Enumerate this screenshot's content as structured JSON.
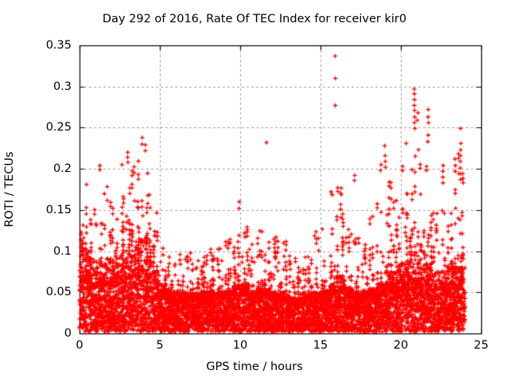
{
  "chart_data": {
    "type": "scatter",
    "title": "Day 292 of 2016, Rate Of TEC Index for receiver kir0",
    "xlabel": "GPS time / hours",
    "ylabel": "ROTI / TECUs",
    "xlim": [
      0,
      25
    ],
    "ylim": [
      0,
      0.35
    ],
    "xticks": [
      0,
      5,
      10,
      15,
      20,
      25
    ],
    "xtick_labels": [
      "0",
      "5",
      "10",
      "15",
      "20",
      "25"
    ],
    "yticks": [
      0,
      0.05,
      0.1,
      0.15,
      0.2,
      0.25,
      0.3,
      0.35
    ],
    "ytick_labels": [
      "0",
      "0.05",
      "0.1",
      "0.15",
      "0.2",
      "0.25",
      "0.3",
      "0.35"
    ],
    "grid": true,
    "legend": "none",
    "marker": "plus",
    "marker_color": "#ff0000",
    "grid_color": "#9e9e9e",
    "border_color": "#000000",
    "text_color": "#000000",
    "background_color": "#ffffff",
    "x_data_range": [
      0,
      24
    ],
    "point_cloud_model": {
      "description": "Dense scatter of ROTI values vs GPS time; per half-hour bin: [dense_top TECU (top of dense mass), finger_max TECU (top of sparse spike fingers)]",
      "seed": 292,
      "bin_hours": 0.5,
      "x_start": 0,
      "points_per_bin": 170,
      "bins": [
        [
          0.1,
          0.15
        ],
        [
          0.09,
          0.16
        ],
        [
          0.085,
          0.15
        ],
        [
          0.09,
          0.18
        ],
        [
          0.09,
          0.155
        ],
        [
          0.1,
          0.185
        ],
        [
          0.11,
          0.2
        ],
        [
          0.115,
          0.215
        ],
        [
          0.11,
          0.205
        ],
        [
          0.075,
          0.15
        ],
        [
          0.055,
          0.11
        ],
        [
          0.05,
          0.095
        ],
        [
          0.05,
          0.1
        ],
        [
          0.05,
          0.095
        ],
        [
          0.048,
          0.09
        ],
        [
          0.05,
          0.095
        ],
        [
          0.05,
          0.1
        ],
        [
          0.05,
          0.105
        ],
        [
          0.052,
          0.11
        ],
        [
          0.058,
          0.135
        ],
        [
          0.06,
          0.145
        ],
        [
          0.05,
          0.12
        ],
        [
          0.055,
          0.135
        ],
        [
          0.055,
          0.12
        ],
        [
          0.05,
          0.115
        ],
        [
          0.05,
          0.12
        ],
        [
          0.042,
          0.095
        ],
        [
          0.042,
          0.09
        ],
        [
          0.048,
          0.11
        ],
        [
          0.05,
          0.13
        ],
        [
          0.052,
          0.13
        ],
        [
          0.06,
          0.175
        ],
        [
          0.07,
          0.19
        ],
        [
          0.055,
          0.13
        ],
        [
          0.05,
          0.12
        ],
        [
          0.05,
          0.125
        ],
        [
          0.055,
          0.15
        ],
        [
          0.06,
          0.17
        ],
        [
          0.075,
          0.19
        ],
        [
          0.075,
          0.17
        ],
        [
          0.085,
          0.2
        ],
        [
          0.1,
          0.235
        ],
        [
          0.1,
          0.23
        ],
        [
          0.085,
          0.22
        ],
        [
          0.075,
          0.17
        ],
        [
          0.075,
          0.19
        ],
        [
          0.085,
          0.185
        ],
        [
          0.095,
          0.22
        ]
      ],
      "outlier_columns": [
        {
          "x": 15.92,
          "y": [
            0.337,
            0.31,
            0.277
          ]
        },
        {
          "x": 11.63,
          "y": [
            0.232
          ]
        },
        {
          "x": 3.88,
          "y": [
            0.238,
            0.23
          ]
        },
        {
          "x": 4.1,
          "y": [
            0.229,
            0.222
          ]
        },
        {
          "x": 3.0,
          "y": [
            0.22,
            0.214,
            0.208
          ]
        },
        {
          "x": 2.62,
          "y": [
            0.205
          ]
        },
        {
          "x": 1.25,
          "y": [
            0.204,
            0.199
          ]
        },
        {
          "x": 0.45,
          "y": [
            0.181
          ]
        },
        {
          "x": 9.93,
          "y": [
            0.16,
            0.152
          ]
        },
        {
          "x": 17.12,
          "y": [
            0.192,
            0.186
          ]
        },
        {
          "x": 18.75,
          "y": [
            0.205,
            0.198
          ]
        },
        {
          "x": 19.02,
          "y": [
            0.228,
            0.216,
            0.209,
            0.202
          ]
        },
        {
          "x": 20.32,
          "y": [
            0.231
          ]
        },
        {
          "x": 20.85,
          "y": [
            0.297,
            0.291,
            0.284,
            0.277,
            0.271,
            0.263,
            0.256,
            0.249
          ]
        },
        {
          "x": 21.05,
          "y": [
            0.268,
            0.259
          ]
        },
        {
          "x": 21.7,
          "y": [
            0.272,
            0.263,
            0.256,
            0.241,
            0.233
          ]
        },
        {
          "x": 22.62,
          "y": [
            0.204,
            0.197,
            0.19,
            0.183
          ]
        },
        {
          "x": 23.38,
          "y": [
            0.212,
            0.204,
            0.197
          ]
        },
        {
          "x": 23.72,
          "y": [
            0.249,
            0.231,
            0.223,
            0.216,
            0.209,
            0.201,
            0.194,
            0.187
          ]
        }
      ]
    }
  }
}
